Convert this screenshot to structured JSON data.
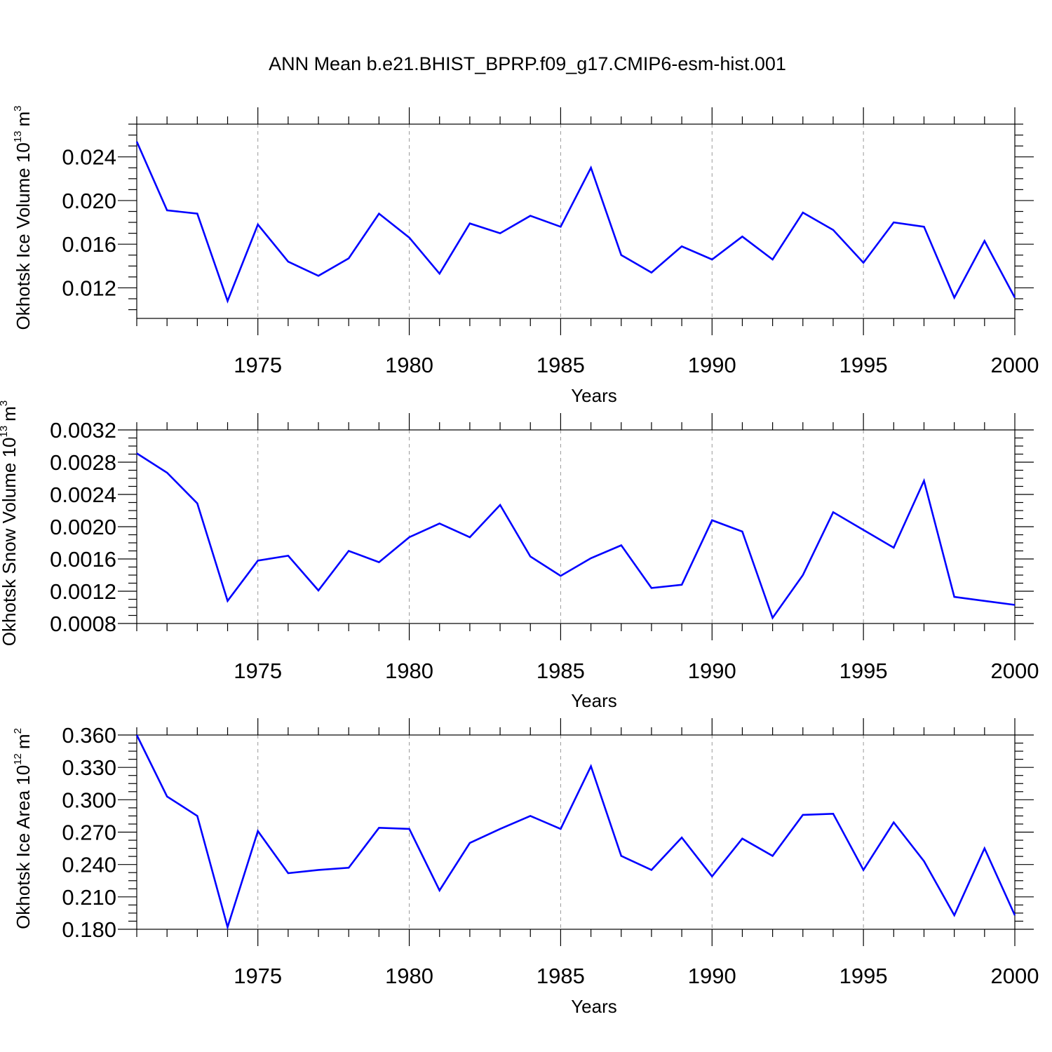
{
  "title": "ANN Mean b.e21.BHIST_BPRP.f09_g17.CMIP6-esm-hist.001",
  "colors": {
    "line": "#0000ff",
    "axis": "#000000",
    "grid": "#999999"
  },
  "chart_data": [
    {
      "type": "line",
      "xlabel": "Years",
      "ylabel": {
        "text": "Okhotsk Ice Volume 10",
        "exp": "13",
        "unit": "m",
        "unit_exp": "3"
      },
      "xlim": [
        1971,
        2000
      ],
      "ylim": [
        0.0092,
        0.027
      ],
      "x_ticks": [
        1975,
        1980,
        1985,
        1990,
        1995,
        2000
      ],
      "y_ticks": [
        0.012,
        0.016,
        0.02,
        0.024
      ],
      "y_tick_labels": [
        "0.012",
        "0.016",
        "0.020",
        "0.024"
      ],
      "grid": "vertical dashed at major x ticks",
      "x": [
        1971,
        1972,
        1973,
        1974,
        1975,
        1976,
        1977,
        1978,
        1979,
        1980,
        1981,
        1982,
        1983,
        1984,
        1985,
        1986,
        1987,
        1988,
        1989,
        1990,
        1991,
        1992,
        1993,
        1994,
        1995,
        1996,
        1997,
        1998,
        1999,
        2000
      ],
      "values": [
        0.0254,
        0.0191,
        0.0188,
        0.0108,
        0.0178,
        0.0144,
        0.0131,
        0.0147,
        0.0188,
        0.0166,
        0.0133,
        0.0179,
        0.017,
        0.0186,
        0.0176,
        0.023,
        0.015,
        0.0134,
        0.0158,
        0.0146,
        0.0167,
        0.0146,
        0.0189,
        0.0173,
        0.0143,
        0.018,
        0.0176,
        0.0111,
        0.0163,
        0.0111
      ]
    },
    {
      "type": "line",
      "xlabel": "Years",
      "ylabel": {
        "text": "Okhotsk Snow Volume 10",
        "exp": "13",
        "unit": "m",
        "unit_exp": "3"
      },
      "xlim": [
        1971,
        2000
      ],
      "ylim": [
        0.0008,
        0.0032
      ],
      "x_ticks": [
        1975,
        1980,
        1985,
        1990,
        1995,
        2000
      ],
      "y_ticks": [
        0.0008,
        0.0012,
        0.0016,
        0.002,
        0.0024,
        0.0028,
        0.0032
      ],
      "y_tick_labels": [
        "0.0008",
        "0.0012",
        "0.0016",
        "0.0020",
        "0.0024",
        "0.0028",
        "0.0032"
      ],
      "grid": "vertical dashed at major x ticks",
      "x": [
        1971,
        1972,
        1973,
        1974,
        1975,
        1976,
        1977,
        1978,
        1979,
        1980,
        1981,
        1982,
        1983,
        1984,
        1985,
        1986,
        1987,
        1988,
        1989,
        1990,
        1991,
        1992,
        1993,
        1994,
        1995,
        1996,
        1997,
        1998,
        1999,
        2000
      ],
      "values": [
        0.00291,
        0.00267,
        0.00229,
        0.00108,
        0.00158,
        0.00164,
        0.00121,
        0.0017,
        0.00156,
        0.00187,
        0.00204,
        0.00187,
        0.00227,
        0.00163,
        0.00139,
        0.00161,
        0.00177,
        0.00124,
        0.00128,
        0.00208,
        0.00194,
        0.00087,
        0.0014,
        0.00218,
        0.00196,
        0.00174,
        0.00257,
        0.00113,
        0.00108,
        0.00103
      ]
    },
    {
      "type": "line",
      "xlabel": "Years",
      "ylabel": {
        "text": "Okhotsk Ice Area 10",
        "exp": "12",
        "unit": "m",
        "unit_exp": "2"
      },
      "xlim": [
        1971,
        2000
      ],
      "ylim": [
        0.18,
        0.36
      ],
      "x_ticks": [
        1975,
        1980,
        1985,
        1990,
        1995,
        2000
      ],
      "y_ticks": [
        0.18,
        0.21,
        0.24,
        0.27,
        0.3,
        0.33,
        0.36
      ],
      "y_tick_labels": [
        "0.180",
        "0.210",
        "0.240",
        "0.270",
        "0.300",
        "0.330",
        "0.360"
      ],
      "grid": "vertical dashed at major x ticks",
      "x": [
        1971,
        1972,
        1973,
        1974,
        1975,
        1976,
        1977,
        1978,
        1979,
        1980,
        1981,
        1982,
        1983,
        1984,
        1985,
        1986,
        1987,
        1988,
        1989,
        1990,
        1991,
        1992,
        1993,
        1994,
        1995,
        1996,
        1997,
        1998,
        1999,
        2000
      ],
      "values": [
        0.36,
        0.303,
        0.285,
        0.182,
        0.271,
        0.232,
        0.235,
        0.237,
        0.274,
        0.273,
        0.216,
        0.26,
        0.273,
        0.285,
        0.273,
        0.331,
        0.248,
        0.235,
        0.265,
        0.229,
        0.264,
        0.248,
        0.286,
        0.287,
        0.235,
        0.279,
        0.243,
        0.193,
        0.255,
        0.193
      ]
    }
  ]
}
